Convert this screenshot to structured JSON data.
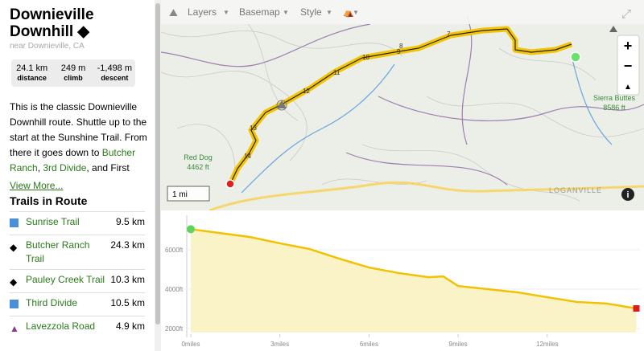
{
  "sidebar": {
    "title": "Downieville Downhill",
    "location": "near Downieville, CA",
    "stats": [
      {
        "value": "24.1 km",
        "label": "distance"
      },
      {
        "value": "249 m",
        "label": "climb"
      },
      {
        "value": "-1,498 m",
        "label": "descent"
      }
    ],
    "description": {
      "text": "This is the classic Downieville Downhill route. Shuttle up to the start at the Sunshine Trail. From there it goes down to ",
      "link1": "Butcher Ranch",
      "sep": ", ",
      "link2": "3rd Divide",
      "tail": ", and First"
    },
    "view_more": "View More...",
    "section_title": "Trails in Route",
    "trails": [
      {
        "name": "Sunrise Trail",
        "length": "9.5 km"
      },
      {
        "name": "Butcher Ranch Trail",
        "length": "24.3 km"
      },
      {
        "name": "Pauley Creek Trail",
        "length": "10.3 km"
      },
      {
        "name": "Third Divide",
        "length": "10.5 km"
      },
      {
        "name": "Lavezzola Road",
        "length": "4.9 km"
      }
    ]
  },
  "map": {
    "toolbar": [
      "Layers",
      "Basemap",
      "Style"
    ],
    "markers": [
      "14",
      "13",
      "12",
      "11",
      "10",
      "9",
      "8",
      "7"
    ],
    "places": [
      {
        "name": "Red Dog",
        "elevation": "4462 ft"
      },
      {
        "name": "Sierra Buttes",
        "elevation": "8586 ft"
      }
    ],
    "town": "LOGANVILLE",
    "scale": "1 mi"
  },
  "chart_data": {
    "type": "area",
    "x": [
      0,
      0.5,
      1,
      2,
      3,
      4,
      5,
      6,
      7,
      8,
      8.5,
      9,
      10,
      11,
      12,
      13,
      14,
      15
    ],
    "values": [
      7050,
      6950,
      6850,
      6650,
      6330,
      6040,
      5550,
      5100,
      4820,
      4610,
      4650,
      4160,
      4000,
      3840,
      3590,
      3350,
      3270,
      3020
    ],
    "color": "#f2c200",
    "fill": "#fbf3c8",
    "xlim": [
      0,
      15
    ],
    "ylim": [
      1800,
      7700
    ],
    "xticks": [
      {
        "value": 0,
        "label": "0miles"
      },
      {
        "value": 3,
        "label": "3miles"
      },
      {
        "value": 6,
        "label": "6miles"
      },
      {
        "value": 9,
        "label": "9miles"
      },
      {
        "value": 12,
        "label": "12miles"
      }
    ],
    "yticks": [
      {
        "value": 6000,
        "label": "6000ft"
      },
      {
        "value": 4000,
        "label": "4000ft"
      },
      {
        "value": 2000,
        "label": "2000ft"
      }
    ]
  }
}
